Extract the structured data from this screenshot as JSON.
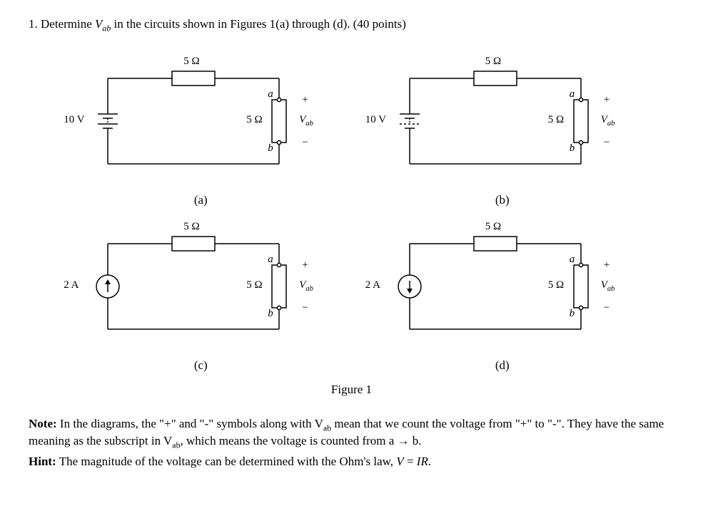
{
  "problem": {
    "number": "1.",
    "text_pre": "Determine ",
    "vab": "V",
    "vab_sub": "ab",
    "text_post": " in the circuits shown in Figures 1(a) through (d). (40 points)"
  },
  "figure_caption": "Figure 1",
  "circuits": [
    {
      "id": "a",
      "label": "(a)",
      "source_type": "voltage",
      "source_value": "10 V",
      "top_res": "5 Ω",
      "right_res": "5 Ω",
      "vab": "V",
      "vab_sub": "ab",
      "a": "a",
      "b": "b",
      "plus": "+",
      "minus": "−",
      "arrow": "none"
    },
    {
      "id": "b",
      "label": "(b)",
      "source_type": "voltage_dashed",
      "source_value": "10 V",
      "top_res": "5 Ω",
      "right_res": "5 Ω",
      "vab": "V",
      "vab_sub": "ab",
      "a": "a",
      "b": "b",
      "plus": "+",
      "minus": "−",
      "arrow": "none"
    },
    {
      "id": "c",
      "label": "(c)",
      "source_type": "current",
      "source_value": "2 A",
      "top_res": "5 Ω",
      "right_res": "5 Ω",
      "vab": "V",
      "vab_sub": "ab",
      "a": "a",
      "b": "b",
      "plus": "+",
      "minus": "−",
      "arrow": "up"
    },
    {
      "id": "d",
      "label": "(d)",
      "source_type": "current",
      "source_value": "2 A",
      "top_res": "5 Ω",
      "right_res": "5 Ω",
      "vab": "V",
      "vab_sub": "ab",
      "a": "a",
      "b": "b",
      "plus": "+",
      "minus": "−",
      "arrow": "down"
    }
  ],
  "note": {
    "label": "Note:",
    "line1a": "In the diagrams, the \"+\" and \"-\" symbols along with V",
    "line1a_sub": "ab",
    "line1b": " mean that we count the voltage from \"+\" to \"-\". They have the same meaning as the subscript in V",
    "line1b_sub": "ab",
    "line1c": ", which means the voltage is counted from a → b."
  },
  "hint": {
    "label": "Hint:",
    "text_a": "The magnitude of the voltage can be determined with the Ohm's law, ",
    "eq_v": "V",
    "eq_mid": " = ",
    "eq_ir": "IR",
    "eq_end": "."
  },
  "style": {
    "stroke": "#000000",
    "stroke_width": 1.5,
    "node_radius": 2.6,
    "resistor_fill": "#ffffff"
  }
}
